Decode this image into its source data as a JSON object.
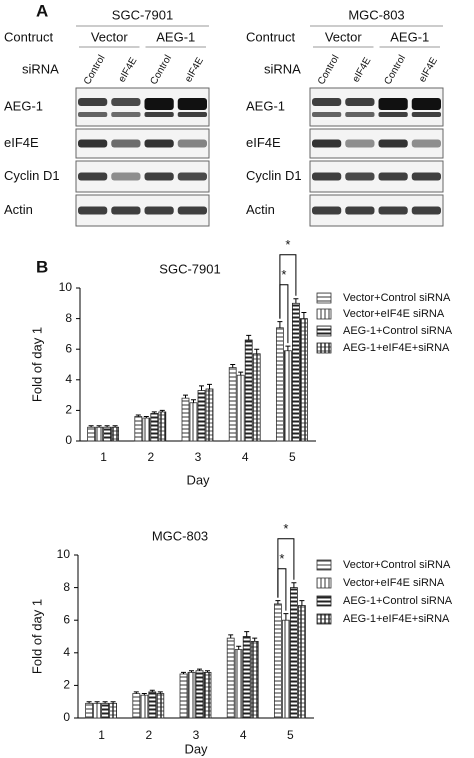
{
  "panel_a": {
    "label": "A",
    "blots": [
      {
        "title": "SGC-7901",
        "construct_label": "Contruct",
        "constructs": [
          "Vector",
          "AEG-1"
        ],
        "sirna_label": "siRNA",
        "lanes": [
          "Control",
          "eIF4E",
          "Control",
          "eIF4E"
        ],
        "rows": [
          "AEG-1",
          "eIF4E",
          "Cyclin D1",
          "Actin"
        ]
      },
      {
        "title": "MGC-803",
        "construct_label": "Contruct",
        "constructs": [
          "Vector",
          "AEG-1"
        ],
        "sirna_label": "siRNA",
        "lanes": [
          "Control",
          "eIF4E",
          "Control",
          "eIF4E"
        ],
        "rows": [
          "AEG-1",
          "eIF4E",
          "Cyclin D1",
          "Actin"
        ]
      }
    ]
  },
  "panel_b_label": "B",
  "chart_data": [
    {
      "type": "bar",
      "title": "SGC-7901",
      "x_label": "Day",
      "y_label": "Fold of day 1",
      "categories": [
        "1",
        "2",
        "3",
        "4",
        "5"
      ],
      "ylim": [
        0,
        10
      ],
      "yticks": [
        0,
        2,
        4,
        6,
        8,
        10
      ],
      "series": [
        {
          "name": "Vector+Control siRNA",
          "color": "#333333",
          "hatch": "horizontal",
          "values": [
            0.9,
            1.6,
            2.8,
            4.8,
            7.4
          ],
          "errors": [
            0.1,
            0.1,
            0.2,
            0.2,
            0.4
          ]
        },
        {
          "name": "Vector+eIF4E siRNA",
          "color": "#333333",
          "hatch": "vertical",
          "values": [
            0.9,
            1.5,
            2.5,
            4.3,
            5.9
          ],
          "errors": [
            0.1,
            0.1,
            0.2,
            0.2,
            0.3
          ]
        },
        {
          "name": "AEG-1+Control siRNA",
          "color": "#222222",
          "hatch": "dense",
          "values": [
            0.9,
            1.8,
            3.3,
            6.6,
            9.0
          ],
          "errors": [
            0.1,
            0.1,
            0.3,
            0.3,
            0.3
          ]
        },
        {
          "name": "AEG-1+eIF4E+siRNA",
          "color": "#222222",
          "hatch": "grid",
          "values": [
            0.9,
            1.9,
            3.4,
            5.7,
            8.0
          ],
          "errors": [
            0.1,
            0.1,
            0.3,
            0.3,
            0.4
          ]
        }
      ],
      "annotations": [
        "*",
        "*"
      ]
    },
    {
      "type": "bar",
      "title": "MGC-803",
      "x_label": "Day",
      "y_label": "Fold of day 1",
      "categories": [
        "1",
        "2",
        "3",
        "4",
        "5"
      ],
      "ylim": [
        0,
        10
      ],
      "yticks": [
        0,
        2,
        4,
        6,
        8,
        10
      ],
      "series": [
        {
          "name": "Vector+Control siRNA",
          "color": "#333333",
          "hatch": "horizontal",
          "values": [
            0.9,
            1.5,
            2.7,
            4.9,
            7.0
          ],
          "errors": [
            0.1,
            0.1,
            0.1,
            0.2,
            0.2
          ]
        },
        {
          "name": "Vector+eIF4E siRNA",
          "color": "#333333",
          "hatch": "vertical",
          "values": [
            0.9,
            1.4,
            2.8,
            4.2,
            6.0
          ],
          "errors": [
            0.1,
            0.1,
            0.1,
            0.2,
            0.4
          ]
        },
        {
          "name": "AEG-1+Control siRNA",
          "color": "#222222",
          "hatch": "dense",
          "values": [
            0.9,
            1.6,
            2.9,
            5.0,
            8.0
          ],
          "errors": [
            0.1,
            0.1,
            0.1,
            0.3,
            0.3
          ]
        },
        {
          "name": "AEG-1+eIF4E+siRNA",
          "color": "#222222",
          "hatch": "grid",
          "values": [
            0.9,
            1.5,
            2.8,
            4.7,
            6.9
          ],
          "errors": [
            0.1,
            0.1,
            0.1,
            0.2,
            0.3
          ]
        }
      ],
      "annotations": [
        "*",
        "*"
      ]
    }
  ]
}
